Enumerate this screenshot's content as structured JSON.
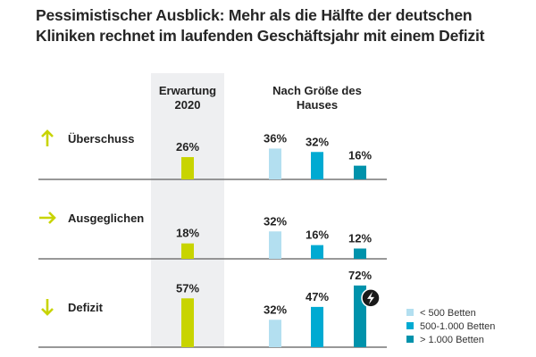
{
  "title_lines": [
    "Pessimistischer Ausblick: Mehr als die Hälfte der deutschen",
    "Kliniken rechnet im laufenden Geschäftsjahr mit einem Defizit"
  ],
  "colors": {
    "expectation": "#c8d400",
    "small": "#b3dff0",
    "medium": "#00aad2",
    "large": "#0092ab",
    "highlight_column": "#eeeff1",
    "axis": "#777777",
    "text": "#222222",
    "icon_bg": "#1a1a1a"
  },
  "chart_data": {
    "type": "bar",
    "title": "Pessimistischer Ausblick: Mehr als die Hälfte der deutschen Kliniken rechnet im laufenden Geschäftsjahr mit einem Defizit",
    "group_headers": [
      [
        "Erwartung",
        "2020"
      ],
      [
        "Nach Größe des",
        "Hauses"
      ]
    ],
    "unit": "%",
    "categories": [
      {
        "label": "Überschuss",
        "arrow": "arrow-up-icon"
      },
      {
        "label": "Ausgeglichen",
        "arrow": "arrow-right-icon"
      },
      {
        "label": "Defizit",
        "arrow": "arrow-down-icon"
      }
    ],
    "series": [
      {
        "name": "Erwartung 2020",
        "color_key": "expectation",
        "values": [
          26,
          18,
          57
        ],
        "in_legend": false
      },
      {
        "name": "< 500 Betten",
        "color_key": "small",
        "values": [
          36,
          32,
          32
        ],
        "in_legend": true
      },
      {
        "name": "500-1.000 Betten",
        "color_key": "medium",
        "values": [
          32,
          16,
          47
        ],
        "in_legend": true
      },
      {
        "name": "> 1.000 Betten",
        "color_key": "large",
        "values": [
          16,
          12,
          72
        ],
        "in_legend": true
      }
    ],
    "annotations": [
      {
        "category": "Defizit",
        "series": "> 1.000 Betten",
        "icon": "lightning-icon"
      }
    ],
    "legend_position": "bottom-right",
    "grid": false,
    "ylim": [
      0,
      100
    ]
  }
}
